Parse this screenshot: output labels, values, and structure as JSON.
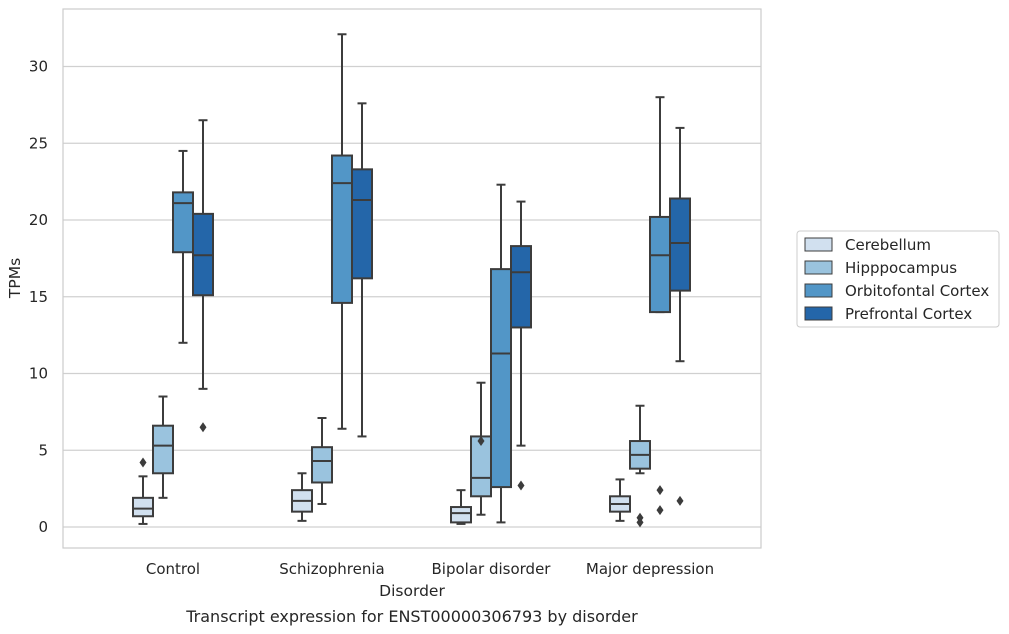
{
  "chart_data": {
    "type": "box",
    "caption": "Transcript expression for ENST00000306793 by disorder",
    "xlabel": "Disorder",
    "ylabel": "TPMs",
    "ylim": [
      -1.3,
      33.7
    ],
    "yticks": [
      0,
      5,
      10,
      15,
      20,
      25,
      30
    ],
    "grid": "horizontal",
    "legend_position": "right",
    "categories": [
      "Control",
      "Schizophrenia",
      "Bipolar disorder",
      "Major depression"
    ],
    "series": [
      {
        "name": "Cerebellum",
        "color": "#d1e0ef",
        "boxes": [
          {
            "whislo": 0.2,
            "q1": 0.7,
            "med": 1.2,
            "q3": 1.9,
            "whishi": 3.3,
            "fliers": [
              4.2
            ]
          },
          {
            "whislo": 0.4,
            "q1": 1.0,
            "med": 1.7,
            "q3": 2.4,
            "whishi": 3.5,
            "fliers": []
          },
          {
            "whislo": 0.2,
            "q1": 0.3,
            "med": 0.9,
            "q3": 1.3,
            "whishi": 2.4,
            "fliers": []
          },
          {
            "whislo": 0.4,
            "q1": 1.0,
            "med": 1.5,
            "q3": 2.0,
            "whishi": 3.1,
            "fliers": []
          }
        ]
      },
      {
        "name": "Hipppocampus",
        "color": "#9ac3de",
        "boxes": [
          {
            "whislo": 1.9,
            "q1": 3.5,
            "med": 5.3,
            "q3": 6.6,
            "whishi": 8.5,
            "fliers": []
          },
          {
            "whislo": 1.5,
            "q1": 2.9,
            "med": 4.3,
            "q3": 5.2,
            "whishi": 7.1,
            "fliers": []
          },
          {
            "whislo": 0.8,
            "q1": 2.0,
            "med": 3.2,
            "q3": 5.9,
            "whishi": 9.4,
            "fliers": [
              5.6
            ]
          },
          {
            "whislo": 3.5,
            "q1": 3.8,
            "med": 4.7,
            "q3": 5.6,
            "whishi": 7.9,
            "fliers": [
              0.3,
              0.6
            ]
          }
        ]
      },
      {
        "name": "Orbitofontal Cortex",
        "color": "#5296c7",
        "boxes": [
          {
            "whislo": 12.0,
            "q1": 17.9,
            "med": 21.1,
            "q3": 21.8,
            "whishi": 24.5,
            "fliers": []
          },
          {
            "whislo": 6.4,
            "q1": 14.6,
            "med": 22.4,
            "q3": 24.2,
            "whishi": 32.1,
            "fliers": []
          },
          {
            "whislo": 0.3,
            "q1": 2.6,
            "med": 11.3,
            "q3": 16.8,
            "whishi": 22.3,
            "fliers": []
          },
          {
            "whislo": 14.0,
            "q1": 14.0,
            "med": 17.7,
            "q3": 20.2,
            "whishi": 28.0,
            "fliers": [
              1.1,
              2.4
            ]
          }
        ]
      },
      {
        "name": "Prefrontal Cortex",
        "color": "#2466a9",
        "boxes": [
          {
            "whislo": 9.0,
            "q1": 15.1,
            "med": 17.7,
            "q3": 20.4,
            "whishi": 26.5,
            "fliers": [
              6.5
            ]
          },
          {
            "whislo": 5.9,
            "q1": 16.2,
            "med": 21.3,
            "q3": 23.3,
            "whishi": 27.6,
            "fliers": []
          },
          {
            "whislo": 5.3,
            "q1": 13.0,
            "med": 16.6,
            "q3": 18.3,
            "whishi": 21.2,
            "fliers": [
              2.7
            ]
          },
          {
            "whislo": 10.8,
            "q1": 15.4,
            "med": 18.5,
            "q3": 21.4,
            "whishi": 26.0,
            "fliers": [
              1.7
            ]
          }
        ]
      }
    ]
  }
}
